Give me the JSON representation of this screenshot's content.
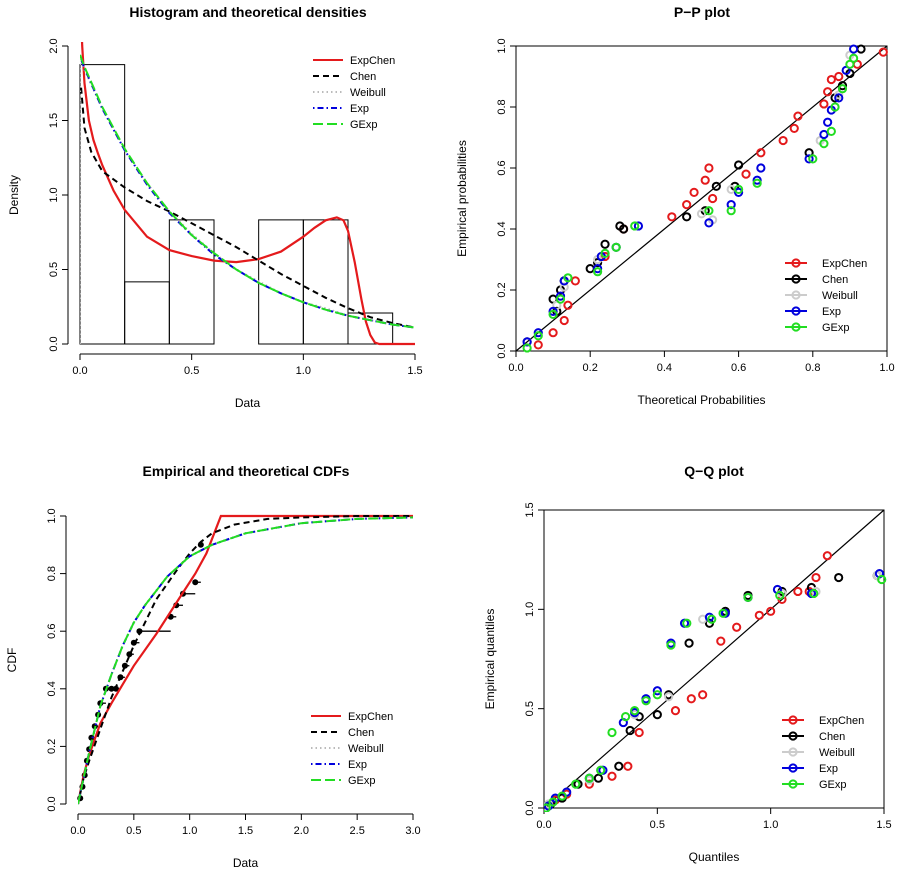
{
  "chart_data": [
    {
      "type": "histogram",
      "title": "Histogram and theoretical densities",
      "xlabel": "Data",
      "ylabel": "Density",
      "xlim": [
        0,
        1.5
      ],
      "ylim": [
        0,
        2.0
      ],
      "xticks": [
        "0.0",
        "0.5",
        "1.0",
        "1.5"
      ],
      "yticks": [
        "0.0",
        "0.5",
        "1.0",
        "1.5",
        "2.0"
      ],
      "bins": [
        {
          "from": 0.0,
          "to": 0.2,
          "density": 1.875
        },
        {
          "from": 0.2,
          "to": 0.4,
          "density": 0.417
        },
        {
          "from": 0.4,
          "to": 0.6,
          "density": 0.833
        },
        {
          "from": 0.6,
          "to": 0.8,
          "density": 0.0
        },
        {
          "from": 0.8,
          "to": 1.0,
          "density": 0.833
        },
        {
          "from": 1.0,
          "to": 1.2,
          "density": 0.833
        },
        {
          "from": 1.2,
          "to": 1.4,
          "density": 0.208
        }
      ],
      "series": [
        {
          "name": "ExpChen",
          "color": "#e41a1c",
          "dash": "solid",
          "x": [
            0.005,
            0.01,
            0.02,
            0.04,
            0.06,
            0.08,
            0.1,
            0.15,
            0.2,
            0.3,
            0.4,
            0.5,
            0.6,
            0.7,
            0.8,
            0.9,
            1.0,
            1.05,
            1.1,
            1.15,
            1.18,
            1.2,
            1.23,
            1.26,
            1.28,
            1.3,
            1.32,
            1.34,
            1.5
          ],
          "y": [
            2.2,
            2.0,
            1.75,
            1.5,
            1.37,
            1.28,
            1.2,
            1.03,
            0.9,
            0.72,
            0.63,
            0.59,
            0.56,
            0.55,
            0.57,
            0.62,
            0.72,
            0.78,
            0.83,
            0.85,
            0.83,
            0.76,
            0.55,
            0.3,
            0.15,
            0.06,
            0.01,
            0.0,
            0.0
          ]
        },
        {
          "name": "Chen",
          "color": "#000000",
          "dash": "dashed",
          "x": [
            0.005,
            0.02,
            0.05,
            0.1,
            0.2,
            0.3,
            0.4,
            0.5,
            0.6,
            0.7,
            0.8,
            0.9,
            1.0,
            1.1,
            1.2,
            1.3,
            1.4,
            1.5
          ],
          "y": [
            1.72,
            1.45,
            1.29,
            1.16,
            1.05,
            0.96,
            0.89,
            0.81,
            0.73,
            0.65,
            0.56,
            0.47,
            0.39,
            0.31,
            0.24,
            0.18,
            0.14,
            0.11
          ]
        },
        {
          "name": "Weibull",
          "color": "#bbbbbb",
          "dash": "dotted",
          "x": [
            0.0,
            0.0005,
            0.02,
            0.1,
            0.2,
            0.3,
            0.4,
            0.5,
            0.6,
            0.7,
            0.8,
            0.9,
            1.0,
            1.1,
            1.2,
            1.3,
            1.4,
            1.5
          ],
          "y": [
            0.0,
            1.93,
            1.84,
            1.58,
            1.3,
            1.08,
            0.89,
            0.74,
            0.61,
            0.5,
            0.42,
            0.34,
            0.28,
            0.24,
            0.19,
            0.16,
            0.13,
            0.11
          ]
        },
        {
          "name": "Exp",
          "color": "#0000dd",
          "dash": "dotdash",
          "x": [
            0.0,
            0.02,
            0.1,
            0.2,
            0.3,
            0.4,
            0.5,
            0.6,
            0.7,
            0.8,
            0.9,
            1.0,
            1.1,
            1.2,
            1.3,
            1.4,
            1.5
          ],
          "y": [
            1.93,
            1.85,
            1.58,
            1.3,
            1.07,
            0.88,
            0.73,
            0.6,
            0.5,
            0.41,
            0.34,
            0.28,
            0.23,
            0.19,
            0.16,
            0.13,
            0.11
          ]
        },
        {
          "name": "GExp",
          "color": "#22dd22",
          "dash": "longdash",
          "x": [
            0.0,
            0.02,
            0.1,
            0.2,
            0.3,
            0.4,
            0.5,
            0.6,
            0.7,
            0.8,
            0.9,
            1.0,
            1.1,
            1.2,
            1.3,
            1.4,
            1.5
          ],
          "y": [
            1.94,
            1.86,
            1.59,
            1.31,
            1.08,
            0.89,
            0.73,
            0.61,
            0.5,
            0.41,
            0.34,
            0.28,
            0.23,
            0.19,
            0.16,
            0.13,
            0.11
          ]
        }
      ],
      "legend": "top-right"
    },
    {
      "type": "scatter",
      "title": "P−P plot",
      "xlabel": "Theoretical Probabilities",
      "ylabel": "Empirical probabilities",
      "xlim": [
        0,
        1.0
      ],
      "ylim": [
        0,
        1.0
      ],
      "xticks": [
        "0.0",
        "0.2",
        "0.4",
        "0.6",
        "0.8",
        "1.0"
      ],
      "yticks": [
        "0.0",
        "0.2",
        "0.4",
        "0.6",
        "0.8",
        "1.0"
      ],
      "reference_line": "y = x",
      "series": [
        {
          "name": "ExpChen",
          "color": "#e41a1c",
          "x": [
            0.06,
            0.1,
            0.13,
            0.14,
            0.16,
            0.24,
            0.29,
            0.42,
            0.46,
            0.48,
            0.51,
            0.52,
            0.53,
            0.62,
            0.66,
            0.72,
            0.75,
            0.76,
            0.83,
            0.84,
            0.85,
            0.87,
            0.92,
            0.99
          ],
          "y": [
            0.02,
            0.06,
            0.1,
            0.15,
            0.23,
            0.31,
            0.4,
            0.44,
            0.48,
            0.52,
            0.56,
            0.6,
            0.5,
            0.58,
            0.65,
            0.69,
            0.73,
            0.77,
            0.81,
            0.85,
            0.89,
            0.9,
            0.94,
            0.98
          ]
        },
        {
          "name": "Chen",
          "color": "#000000",
          "x": [
            0.03,
            0.1,
            0.11,
            0.12,
            0.13,
            0.2,
            0.22,
            0.24,
            0.28,
            0.29,
            0.46,
            0.51,
            0.54,
            0.59,
            0.6,
            0.79,
            0.86,
            0.88,
            0.9,
            0.93
          ],
          "y": [
            0.03,
            0.17,
            0.13,
            0.2,
            0.23,
            0.27,
            0.29,
            0.35,
            0.41,
            0.4,
            0.44,
            0.46,
            0.54,
            0.54,
            0.61,
            0.65,
            0.83,
            0.87,
            0.91,
            0.99
          ]
        },
        {
          "name": "Weibull",
          "color": "#cccccc",
          "x": [
            0.03,
            0.11,
            0.13,
            0.22,
            0.27,
            0.5,
            0.53,
            0.58,
            0.82,
            0.87,
            0.9
          ],
          "y": [
            0.03,
            0.15,
            0.21,
            0.3,
            0.34,
            0.45,
            0.43,
            0.53,
            0.69,
            0.84,
            0.97
          ]
        },
        {
          "name": "Exp",
          "color": "#0000dd",
          "x": [
            0.03,
            0.06,
            0.1,
            0.12,
            0.13,
            0.22,
            0.23,
            0.27,
            0.33,
            0.52,
            0.58,
            0.6,
            0.65,
            0.66,
            0.79,
            0.83,
            0.84,
            0.85,
            0.87,
            0.89,
            0.91
          ],
          "y": [
            0.03,
            0.06,
            0.13,
            0.18,
            0.23,
            0.27,
            0.31,
            0.34,
            0.41,
            0.42,
            0.48,
            0.52,
            0.56,
            0.6,
            0.63,
            0.71,
            0.75,
            0.79,
            0.83,
            0.92,
            0.99
          ]
        },
        {
          "name": "GExp",
          "color": "#22dd22",
          "x": [
            0.03,
            0.06,
            0.1,
            0.12,
            0.14,
            0.22,
            0.24,
            0.27,
            0.32,
            0.52,
            0.58,
            0.6,
            0.65,
            0.8,
            0.83,
            0.85,
            0.86,
            0.88,
            0.9,
            0.91
          ],
          "y": [
            0.01,
            0.05,
            0.12,
            0.17,
            0.24,
            0.26,
            0.32,
            0.34,
            0.41,
            0.46,
            0.46,
            0.53,
            0.55,
            0.63,
            0.68,
            0.72,
            0.8,
            0.86,
            0.94,
            0.96
          ]
        }
      ],
      "legend": "bottom-right"
    },
    {
      "type": "line",
      "title": "Empirical and theoretical CDFs",
      "xlabel": "Data",
      "ylabel": "CDF",
      "xlim": [
        0,
        3.0
      ],
      "ylim": [
        0,
        1.0
      ],
      "xticks": [
        "0.0",
        "0.5",
        "1.0",
        "1.5",
        "2.0",
        "2.5",
        "3.0"
      ],
      "yticks": [
        "0.0",
        "0.2",
        "0.4",
        "0.6",
        "0.8",
        "1.0"
      ],
      "empirical_points": {
        "x": [
          0.02,
          0.04,
          0.06,
          0.08,
          0.1,
          0.12,
          0.15,
          0.18,
          0.2,
          0.25,
          0.3,
          0.34,
          0.38,
          0.42,
          0.46,
          0.5,
          0.55,
          0.83,
          0.88,
          0.94,
          1.05,
          1.1
        ],
        "y": [
          0.02,
          0.06,
          0.1,
          0.15,
          0.19,
          0.23,
          0.27,
          0.31,
          0.35,
          0.4,
          0.4,
          0.4,
          0.44,
          0.48,
          0.52,
          0.56,
          0.6,
          0.65,
          0.69,
          0.73,
          0.77,
          0.9
        ]
      },
      "series": [
        {
          "name": "ExpChen",
          "color": "#e41a1c",
          "dash": "solid",
          "x": [
            0.0,
            0.05,
            0.1,
            0.2,
            0.3,
            0.5,
            0.7,
            0.9,
            1.05,
            1.15,
            1.22,
            1.28,
            1.35,
            3.0
          ],
          "y": [
            0.0,
            0.1,
            0.17,
            0.28,
            0.35,
            0.48,
            0.59,
            0.71,
            0.8,
            0.87,
            0.94,
            1.0,
            1.0,
            1.0
          ]
        },
        {
          "name": "Chen",
          "color": "#000000",
          "dash": "dashed",
          "x": [
            0.0,
            0.05,
            0.1,
            0.2,
            0.3,
            0.5,
            0.7,
            0.9,
            1.0,
            1.1,
            1.2,
            1.4,
            1.7,
            2.0,
            2.5,
            3.0
          ],
          "y": [
            0.0,
            0.09,
            0.15,
            0.26,
            0.37,
            0.55,
            0.71,
            0.82,
            0.87,
            0.91,
            0.94,
            0.97,
            0.99,
            0.995,
            1.0,
            1.0
          ]
        },
        {
          "name": "Weibull",
          "color": "#bbbbbb",
          "dash": "dotted",
          "x": [
            0.0,
            0.1,
            0.2,
            0.3,
            0.4,
            0.5,
            0.6,
            0.8,
            1.0,
            1.2,
            1.5,
            2.0,
            2.5,
            3.0
          ],
          "y": [
            0.0,
            0.18,
            0.34,
            0.45,
            0.55,
            0.63,
            0.69,
            0.79,
            0.86,
            0.9,
            0.94,
            0.975,
            0.99,
            0.995
          ]
        },
        {
          "name": "Exp",
          "color": "#0000dd",
          "dash": "dotdash",
          "x": [
            0.0,
            0.1,
            0.2,
            0.3,
            0.4,
            0.5,
            0.6,
            0.8,
            1.0,
            1.2,
            1.5,
            2.0,
            2.5,
            3.0
          ],
          "y": [
            0.0,
            0.18,
            0.34,
            0.45,
            0.55,
            0.63,
            0.69,
            0.79,
            0.86,
            0.9,
            0.94,
            0.975,
            0.99,
            0.995
          ]
        },
        {
          "name": "GExp",
          "color": "#22dd22",
          "dash": "longdash",
          "x": [
            0.0,
            0.1,
            0.2,
            0.3,
            0.4,
            0.5,
            0.6,
            0.8,
            1.0,
            1.2,
            1.5,
            2.0,
            2.5,
            3.0
          ],
          "y": [
            0.0,
            0.18,
            0.34,
            0.45,
            0.55,
            0.63,
            0.69,
            0.79,
            0.86,
            0.9,
            0.94,
            0.975,
            0.99,
            0.995
          ]
        }
      ],
      "legend": "bottom-right"
    },
    {
      "type": "scatter",
      "title": "Q−Q plot",
      "xlabel": "Quantiles",
      "ylabel": "Empirical quantiles",
      "xlim": [
        0,
        1.5
      ],
      "ylim": [
        0,
        1.5
      ],
      "xticks": [
        "0.0",
        "0.5",
        "1.0",
        "1.5"
      ],
      "yticks": [
        "0.0",
        "0.5",
        "1.0",
        "1.5"
      ],
      "reference_line": "y = x",
      "series": [
        {
          "name": "ExpChen",
          "color": "#e41a1c",
          "x": [
            0.05,
            0.1,
            0.2,
            0.3,
            0.37,
            0.42,
            0.58,
            0.65,
            0.7,
            0.78,
            0.85,
            0.95,
            1.0,
            1.05,
            1.12,
            1.17,
            1.2,
            1.25
          ],
          "y": [
            0.04,
            0.07,
            0.12,
            0.16,
            0.21,
            0.38,
            0.49,
            0.55,
            0.57,
            0.84,
            0.91,
            0.97,
            0.99,
            1.05,
            1.09,
            1.09,
            1.16,
            1.27
          ]
        },
        {
          "name": "Chen",
          "color": "#000000",
          "x": [
            0.03,
            0.08,
            0.15,
            0.24,
            0.33,
            0.38,
            0.42,
            0.5,
            0.55,
            0.64,
            0.73,
            0.8,
            0.9,
            1.05,
            1.18,
            1.3,
            1.47
          ],
          "y": [
            0.02,
            0.05,
            0.12,
            0.15,
            0.21,
            0.39,
            0.46,
            0.47,
            0.57,
            0.83,
            0.93,
            0.99,
            1.07,
            1.09,
            1.11,
            1.16,
            1.17
          ]
        },
        {
          "name": "Weibull",
          "color": "#cccccc",
          "x": [
            0.02,
            0.1,
            0.2,
            0.4,
            0.55,
            0.7,
            0.9,
            1.05,
            1.2,
            1.47
          ],
          "y": [
            0.02,
            0.08,
            0.14,
            0.47,
            0.56,
            0.95,
            1.06,
            1.08,
            1.09,
            1.17
          ]
        },
        {
          "name": "Exp",
          "color": "#0000dd",
          "x": [
            0.02,
            0.05,
            0.1,
            0.2,
            0.26,
            0.35,
            0.4,
            0.45,
            0.5,
            0.56,
            0.62,
            0.73,
            0.8,
            0.9,
            1.03,
            1.18,
            1.48
          ],
          "y": [
            0.01,
            0.05,
            0.08,
            0.15,
            0.19,
            0.43,
            0.48,
            0.55,
            0.59,
            0.83,
            0.93,
            0.96,
            0.98,
            1.06,
            1.1,
            1.08,
            1.18
          ]
        },
        {
          "name": "GExp",
          "color": "#22dd22",
          "x": [
            0.01,
            0.04,
            0.08,
            0.14,
            0.2,
            0.25,
            0.3,
            0.36,
            0.4,
            0.45,
            0.5,
            0.56,
            0.63,
            0.74,
            0.79,
            0.9,
            1.04,
            1.19,
            1.49
          ],
          "y": [
            0.0,
            0.03,
            0.06,
            0.12,
            0.15,
            0.19,
            0.38,
            0.46,
            0.49,
            0.54,
            0.57,
            0.82,
            0.93,
            0.95,
            0.98,
            1.06,
            1.07,
            1.08,
            1.15
          ]
        }
      ],
      "legend": "bottom-right"
    }
  ]
}
